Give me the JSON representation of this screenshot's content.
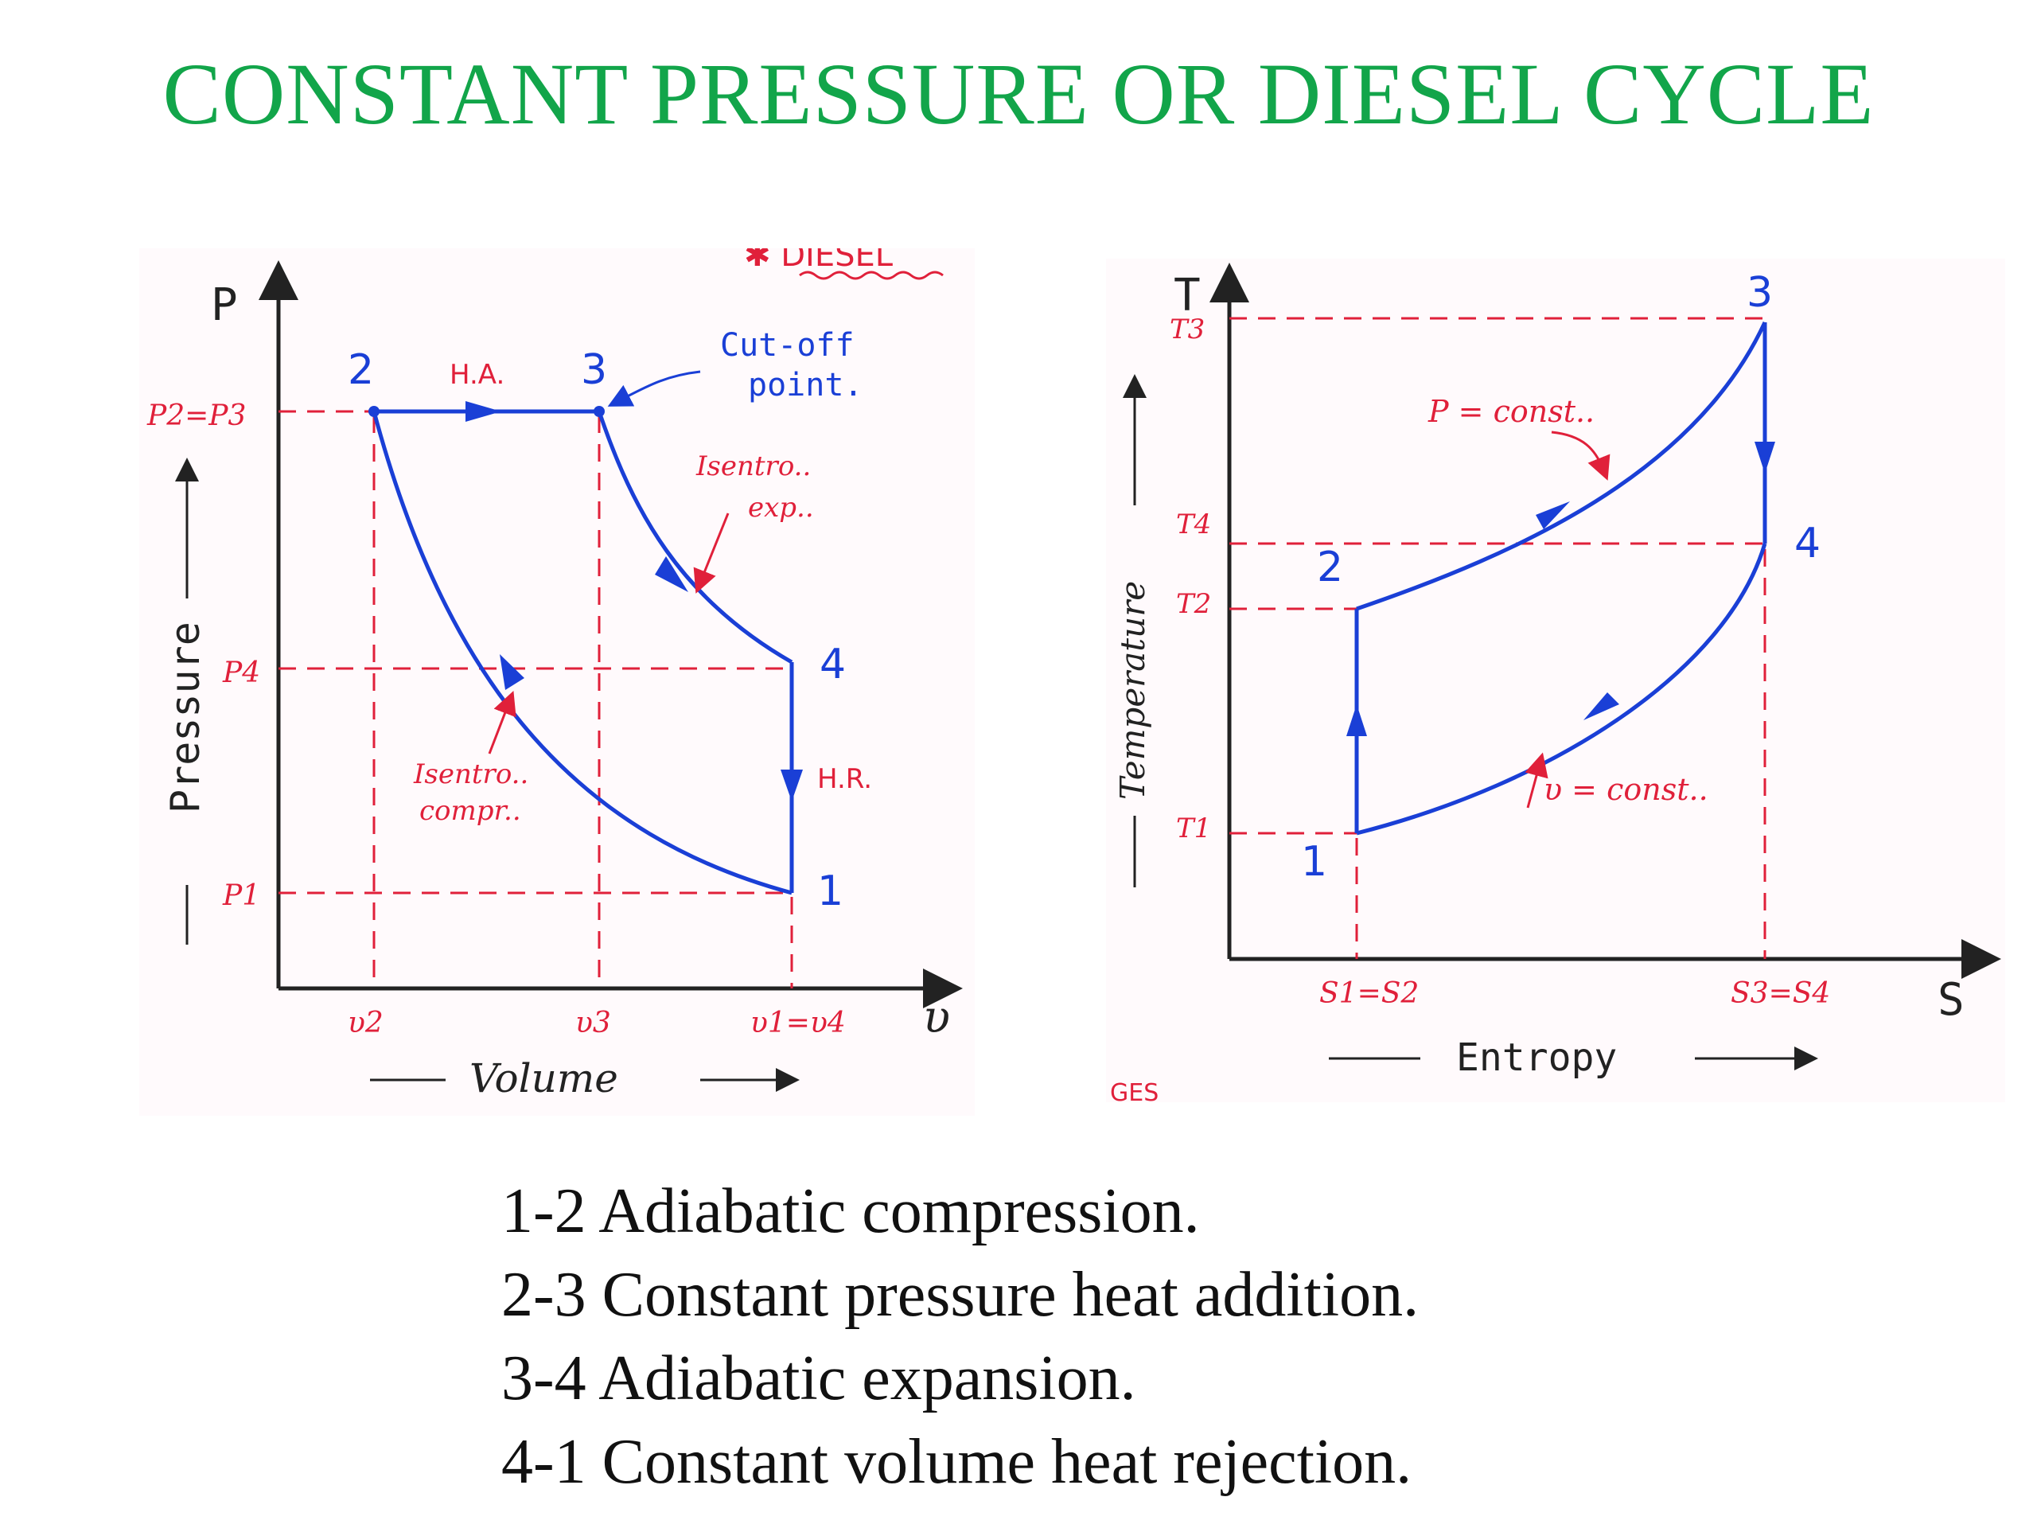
{
  "title": "CONSTANT PRESSURE OR DIESEL CYCLE",
  "colors": {
    "title": "#12a54a",
    "cycle": "#1a3fd6",
    "annotation": "#e0203a",
    "text": "#111111"
  },
  "pv_diagram": {
    "top_scrap": "✱ DIESEL",
    "y_axis_symbol": "P",
    "y_axis_label": "Pressure",
    "x_axis_symbol": "υ",
    "x_axis_label": "Volume",
    "y_ticks": {
      "p2_p3": "P2=P3",
      "p4": "P4",
      "p1": "P1"
    },
    "x_ticks": {
      "v2": "υ2",
      "v3": "υ3",
      "v1_v4": "υ1=υ4"
    },
    "points": {
      "p1": "1",
      "p2": "2",
      "p3": "3",
      "p4": "4"
    },
    "annotations": {
      "heat_addition": "H.A.",
      "heat_rejection": "H.R.",
      "cutoff_line1": "Cut-off",
      "cutoff_line2": "point.",
      "exp_line1": "Isentro..",
      "exp_line2": "exp..",
      "comp_line1": "Isentro..",
      "comp_line2": "compr.."
    }
  },
  "ts_diagram": {
    "y_axis_symbol": "T",
    "y_axis_label": "Temperature",
    "x_axis_symbol": "S",
    "x_axis_label": "Entropy",
    "y_ticks": {
      "t3": "T3",
      "t4": "T4",
      "t2": "T2",
      "t1": "T1"
    },
    "x_ticks": {
      "s1_s2": "S1=S2",
      "s3_s4": "S3=S4"
    },
    "points": {
      "p1": "1",
      "p2": "2",
      "p3": "3",
      "p4": "4"
    },
    "annotations": {
      "p_const": "P = const..",
      "v_const": "υ = const.."
    },
    "bottom_scrap": "GES"
  },
  "legend": [
    "1-2 Adiabatic compression.",
    "2-3 Constant pressure heat addition.",
    "3-4 Adiabatic expansion.",
    "4-1 Constant volume heat rejection."
  ]
}
